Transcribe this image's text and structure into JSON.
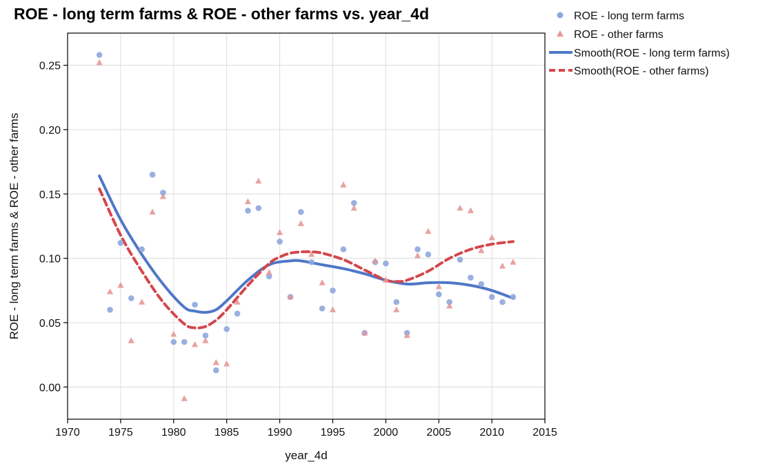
{
  "chart_data": {
    "type": "scatter",
    "title": "ROE - long term farms & ROE - other farms vs. year_4d",
    "xlabel": "year_4d",
    "ylabel": "ROE - long term farms & ROE - other farms",
    "xlim": [
      1970,
      2015
    ],
    "ylim": [
      -0.025,
      0.275
    ],
    "xticks": [
      "1970",
      "1975",
      "1980",
      "1985",
      "1990",
      "1995",
      "2000",
      "2005",
      "2010",
      "2015"
    ],
    "yticks": [
      "0.00",
      "0.05",
      "0.10",
      "0.15",
      "0.20",
      "0.25"
    ],
    "grid": true,
    "legend_position": "top-right",
    "series": [
      {
        "name": "ROE - long term farms",
        "kind": "points",
        "marker": "circle",
        "color": "#8ea7dd",
        "x": [
          1973,
          1974,
          1975,
          1976,
          1977,
          1978,
          1979,
          1980,
          1981,
          1982,
          1983,
          1984,
          1985,
          1986,
          1987,
          1988,
          1989,
          1990,
          1991,
          1992,
          1993,
          1994,
          1995,
          1996,
          1997,
          1998,
          1999,
          2000,
          2001,
          2002,
          2003,
          2004,
          2005,
          2006,
          2007,
          2008,
          2009,
          2010,
          2011,
          2012
        ],
        "y": [
          0.258,
          0.06,
          0.112,
          0.069,
          0.107,
          0.165,
          0.151,
          0.035,
          0.035,
          0.064,
          0.04,
          0.013,
          0.045,
          0.057,
          0.137,
          0.139,
          0.086,
          0.113,
          0.07,
          0.136,
          0.097,
          0.061,
          0.075,
          0.107,
          0.143,
          0.042,
          0.097,
          0.096,
          0.066,
          0.042,
          0.107,
          0.103,
          0.072,
          0.066,
          0.099,
          0.085,
          0.08,
          0.07,
          0.066,
          0.07
        ]
      },
      {
        "name": "ROE - other farms",
        "kind": "points",
        "marker": "triangle",
        "color": "#e59898",
        "x": [
          1973,
          1974,
          1975,
          1976,
          1977,
          1978,
          1979,
          1980,
          1981,
          1982,
          1983,
          1984,
          1985,
          1986,
          1987,
          1988,
          1989,
          1990,
          1991,
          1992,
          1993,
          1994,
          1995,
          1996,
          1997,
          1998,
          1999,
          2000,
          2001,
          2002,
          2003,
          2004,
          2005,
          2006,
          2007,
          2008,
          2009,
          2010,
          2011,
          2012
        ],
        "y": [
          0.252,
          0.074,
          0.079,
          0.036,
          0.066,
          0.136,
          0.148,
          0.041,
          -0.009,
          0.033,
          0.036,
          0.019,
          0.018,
          0.066,
          0.144,
          0.16,
          0.089,
          0.12,
          0.07,
          0.127,
          0.103,
          0.081,
          0.06,
          0.157,
          0.139,
          0.042,
          0.098,
          0.083,
          0.06,
          0.04,
          0.102,
          0.121,
          0.078,
          0.063,
          0.139,
          0.137,
          0.106,
          0.116,
          0.094,
          0.097
        ]
      },
      {
        "name": "Smooth(ROE - long term farms)",
        "kind": "line",
        "dash": "solid",
        "color": "#4f77c8",
        "x": [
          1973,
          1975,
          1977,
          1979,
          1981,
          1982,
          1983,
          1984,
          1985,
          1987,
          1989,
          1991,
          1992,
          1994,
          1996,
          1998,
          2000,
          2002,
          2004,
          2006,
          2008,
          2010,
          2012
        ],
        "y": [
          0.164,
          0.13,
          0.103,
          0.08,
          0.062,
          0.059,
          0.058,
          0.06,
          0.067,
          0.083,
          0.095,
          0.098,
          0.098,
          0.095,
          0.092,
          0.088,
          0.083,
          0.08,
          0.081,
          0.081,
          0.079,
          0.075,
          0.069
        ]
      },
      {
        "name": "Smooth(ROE - other farms)",
        "kind": "line",
        "dash": "dashed",
        "color": "#d4464c",
        "x": [
          1973,
          1975,
          1977,
          1979,
          1981,
          1982,
          1983,
          1984,
          1985,
          1987,
          1989,
          1990,
          1991,
          1992,
          1993,
          1994,
          1996,
          1998,
          2000,
          2001,
          2002,
          2004,
          2006,
          2008,
          2010,
          2012
        ],
        "y": [
          0.154,
          0.118,
          0.09,
          0.066,
          0.049,
          0.046,
          0.047,
          0.052,
          0.06,
          0.079,
          0.096,
          0.101,
          0.104,
          0.105,
          0.105,
          0.104,
          0.099,
          0.091,
          0.083,
          0.082,
          0.083,
          0.09,
          0.1,
          0.107,
          0.111,
          0.113
        ]
      }
    ]
  }
}
